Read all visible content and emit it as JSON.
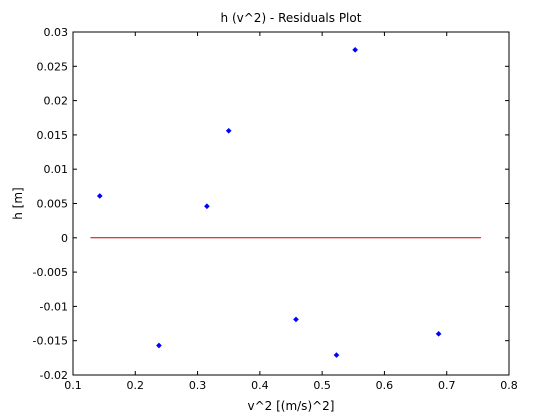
{
  "chart_data": {
    "type": "scatter",
    "title": "h (v^2) - Residuals Plot",
    "xlabel": "v^2 [(m/s)^2]",
    "ylabel": "h [m]",
    "xlim": [
      0.1,
      0.8
    ],
    "ylim": [
      -0.02,
      0.03
    ],
    "xticks": [
      0.1,
      0.2,
      0.3,
      0.4,
      0.5,
      0.6,
      0.7,
      0.8
    ],
    "xtick_labels": [
      "0.1",
      "0.2",
      "0.3",
      "0.4",
      "0.5",
      "0.6",
      "0.7",
      "0.8"
    ],
    "yticks": [
      -0.02,
      -0.015,
      -0.01,
      -0.005,
      0,
      0.005,
      0.01,
      0.015,
      0.02,
      0.025,
      0.03
    ],
    "ytick_labels": [
      "-0.02",
      "-0.015",
      "-0.01",
      "-0.005",
      "0",
      "0.005",
      "0.01",
      "0.015",
      "0.02",
      "0.025",
      "0.03"
    ],
    "grid": false,
    "series": [
      {
        "color": "#0000ff",
        "marker": "dot",
        "points": [
          {
            "x": 0.143,
            "y": 0.0061
          },
          {
            "x": 0.238,
            "y": -0.0157
          },
          {
            "x": 0.315,
            "y": 0.0046
          },
          {
            "x": 0.35,
            "y": 0.0156
          },
          {
            "x": 0.458,
            "y": -0.0119
          },
          {
            "x": 0.523,
            "y": -0.0171
          },
          {
            "x": 0.553,
            "y": 0.0274
          },
          {
            "x": 0.687,
            "y": -0.014
          }
        ]
      }
    ],
    "reference_line": {
      "color": "#cc0000",
      "y": 0,
      "x_range": [
        0.128,
        0.755
      ]
    }
  }
}
